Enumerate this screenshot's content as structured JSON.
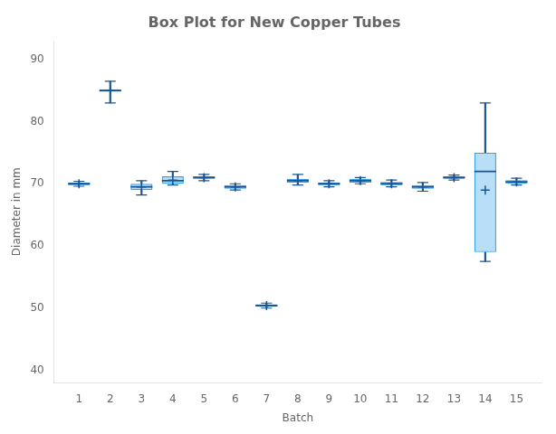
{
  "chart_data": {
    "type": "box",
    "title": "Box Plot for New Copper Tubes",
    "xlabel": "Batch",
    "ylabel": "Diameter in mm",
    "x": [
      1,
      2,
      3,
      4,
      5,
      6,
      7,
      8,
      9,
      10,
      11,
      12,
      13,
      14,
      15
    ],
    "values": [
      {
        "med": 70.0,
        "q1": 69.8,
        "q3": 70.2,
        "whislo": 69.6,
        "whishi": 70.4,
        "mean": 70.0
      },
      {
        "med": 85.0,
        "q1": 84.8,
        "q3": 85.2,
        "whislo": 83.0,
        "whishi": 86.5,
        "mean": 85.0
      },
      {
        "med": 69.5,
        "q1": 69.0,
        "q3": 70.0,
        "whislo": 68.2,
        "whishi": 70.5,
        "mean": 69.5
      },
      {
        "med": 70.5,
        "q1": 70.0,
        "q3": 71.2,
        "whislo": 69.8,
        "whishi": 72.0,
        "mean": 70.6
      },
      {
        "med": 71.0,
        "q1": 70.8,
        "q3": 71.2,
        "whislo": 70.5,
        "whishi": 71.5,
        "mean": 71.0
      },
      {
        "med": 69.5,
        "q1": 69.2,
        "q3": 69.8,
        "whislo": 69.0,
        "whishi": 70.0,
        "mean": 69.5
      },
      {
        "med": 50.4,
        "q1": 50.2,
        "q3": 50.6,
        "whislo": 50.0,
        "whishi": 50.8,
        "mean": 50.4
      },
      {
        "med": 70.5,
        "q1": 70.2,
        "q3": 70.8,
        "whislo": 69.8,
        "whishi": 71.5,
        "mean": 70.5
      },
      {
        "med": 70.0,
        "q1": 69.8,
        "q3": 70.2,
        "whislo": 69.5,
        "whishi": 70.5,
        "mean": 70.0
      },
      {
        "med": 70.5,
        "q1": 70.2,
        "q3": 70.8,
        "whislo": 70.0,
        "whishi": 71.0,
        "mean": 70.5
      },
      {
        "med": 70.0,
        "q1": 69.8,
        "q3": 70.3,
        "whislo": 69.5,
        "whishi": 70.6,
        "mean": 70.0
      },
      {
        "med": 69.5,
        "q1": 69.2,
        "q3": 69.8,
        "whislo": 68.8,
        "whishi": 70.2,
        "mean": 69.5
      },
      {
        "med": 71.0,
        "q1": 70.8,
        "q3": 71.2,
        "whislo": 70.6,
        "whishi": 71.4,
        "mean": 71.0
      },
      {
        "med": 72.0,
        "q1": 59.0,
        "q3": 75.0,
        "whislo": 57.5,
        "whishi": 83.0,
        "mean": 69.0
      },
      {
        "med": 70.3,
        "q1": 70.0,
        "q3": 70.6,
        "whislo": 69.8,
        "whishi": 70.9,
        "mean": 70.3
      }
    ],
    "xlim": [
      0.2,
      15.8
    ],
    "xticks": [
      1,
      2,
      3,
      4,
      5,
      6,
      7,
      8,
      9,
      10,
      11,
      12,
      13,
      14,
      15
    ],
    "ylim": [
      38,
      93
    ],
    "yticks": [
      40,
      50,
      60,
      70,
      80,
      90
    ],
    "grid": false
  }
}
